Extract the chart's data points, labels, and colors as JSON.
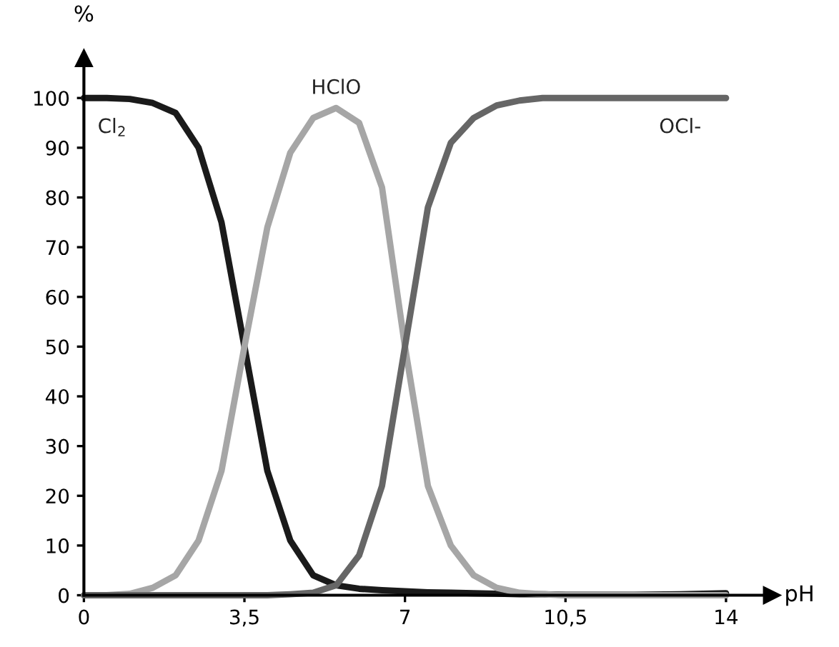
{
  "chart_data": {
    "type": "line",
    "xlabel": "pH",
    "ylabel": "%",
    "x": [
      0,
      0.5,
      1,
      1.5,
      2,
      2.5,
      3,
      3.5,
      4,
      4.5,
      5,
      5.5,
      6,
      6.5,
      7,
      7.5,
      8,
      8.5,
      9,
      9.5,
      10,
      10.5,
      11,
      12,
      13,
      14
    ],
    "series": [
      {
        "name": "Cl$_{2}$",
        "color": "#1a1a1a",
        "values": [
          100,
          100,
          99.8,
          99,
          97,
          90,
          75,
          50,
          25,
          11,
          4,
          2,
          1.3,
          1,
          0.8,
          0.6,
          0.5,
          0.4,
          0.3,
          0.2,
          0.2,
          0.1,
          0.1,
          0.1,
          0.2,
          0.4
        ]
      },
      {
        "name": "HClO",
        "color": "#a6a6a6",
        "values": [
          0,
          0,
          0.3,
          1.5,
          4,
          11,
          25,
          50,
          74,
          89,
          96,
          98,
          95,
          82,
          50,
          22,
          10,
          4,
          1.5,
          0.5,
          0.2,
          0,
          0,
          0,
          0,
          0
        ]
      },
      {
        "name": "OCl-",
        "color": "#666666",
        "values": [
          0,
          0,
          0,
          0,
          0,
          0,
          0,
          0,
          0,
          0.2,
          0.5,
          2,
          8,
          22,
          50,
          78,
          91,
          96,
          98.5,
          99.5,
          100,
          100,
          100,
          100,
          100,
          100
        ]
      }
    ],
    "xlim": [
      0,
      15
    ],
    "ylim": [
      0,
      108
    ],
    "xticks": [
      0,
      {
        "value": 3.5,
        "label": "3,5"
      },
      7,
      {
        "value": 10.5,
        "label": "10,5"
      },
      14
    ],
    "yticks": [
      0,
      10,
      20,
      30,
      40,
      50,
      60,
      70,
      80,
      90,
      100
    ],
    "grid": false,
    "legend": false,
    "marker": "none",
    "line_style": "solid"
  }
}
